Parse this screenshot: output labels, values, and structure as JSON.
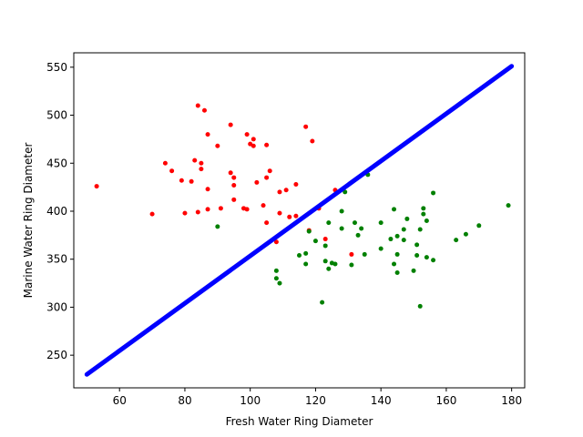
{
  "chart_data": {
    "type": "scatter",
    "title": "",
    "xlabel": "Fresh Water Ring Diameter",
    "ylabel": "Marine Water Ring Diameter",
    "xlim": [
      46,
      184
    ],
    "ylim": [
      216,
      565
    ],
    "xticks": [
      60,
      80,
      100,
      120,
      140,
      160,
      180
    ],
    "yticks": [
      250,
      300,
      350,
      400,
      450,
      500,
      550
    ],
    "grid": false,
    "legend": "none",
    "series": [
      {
        "color": "#ff0000",
        "points": [
          [
            53,
            426
          ],
          [
            70,
            397
          ],
          [
            74,
            450
          ],
          [
            76,
            442
          ],
          [
            79,
            432
          ],
          [
            80,
            398
          ],
          [
            82,
            431
          ],
          [
            83,
            453
          ],
          [
            84,
            510
          ],
          [
            84,
            399
          ],
          [
            85,
            450
          ],
          [
            85,
            444
          ],
          [
            86,
            505
          ],
          [
            87,
            480
          ],
          [
            87,
            423
          ],
          [
            87,
            402
          ],
          [
            90,
            468
          ],
          [
            91,
            403
          ],
          [
            94,
            490
          ],
          [
            94,
            440
          ],
          [
            95,
            435
          ],
          [
            95,
            427
          ],
          [
            95,
            412
          ],
          [
            98,
            403
          ],
          [
            99,
            402
          ],
          [
            99,
            480
          ],
          [
            100,
            470
          ],
          [
            101,
            475
          ],
          [
            101,
            468
          ],
          [
            102,
            430
          ],
          [
            104,
            406
          ],
          [
            105,
            469
          ],
          [
            105,
            435
          ],
          [
            105,
            388
          ],
          [
            106,
            442
          ],
          [
            108,
            368
          ],
          [
            109,
            420
          ],
          [
            109,
            398
          ],
          [
            111,
            422
          ],
          [
            112,
            394
          ],
          [
            114,
            428
          ],
          [
            114,
            395
          ],
          [
            117,
            488
          ],
          [
            118,
            380
          ],
          [
            119,
            473
          ],
          [
            121,
            403
          ],
          [
            123,
            371
          ],
          [
            126,
            422
          ],
          [
            131,
            355
          ]
        ]
      },
      {
        "color": "#008000",
        "points": [
          [
            90,
            384
          ],
          [
            108,
            338
          ],
          [
            108,
            330
          ],
          [
            109,
            325
          ],
          [
            115,
            354
          ],
          [
            117,
            345
          ],
          [
            117,
            356
          ],
          [
            118,
            379
          ],
          [
            120,
            369
          ],
          [
            122,
            305
          ],
          [
            123,
            364
          ],
          [
            123,
            348
          ],
          [
            124,
            388
          ],
          [
            124,
            340
          ],
          [
            125,
            346
          ],
          [
            126,
            345
          ],
          [
            128,
            400
          ],
          [
            128,
            382
          ],
          [
            129,
            420
          ],
          [
            131,
            344
          ],
          [
            132,
            388
          ],
          [
            133,
            375
          ],
          [
            134,
            382
          ],
          [
            135,
            355
          ],
          [
            136,
            438
          ],
          [
            140,
            388
          ],
          [
            140,
            361
          ],
          [
            143,
            371
          ],
          [
            144,
            402
          ],
          [
            144,
            345
          ],
          [
            145,
            336
          ],
          [
            145,
            355
          ],
          [
            145,
            374
          ],
          [
            147,
            370
          ],
          [
            147,
            381
          ],
          [
            148,
            392
          ],
          [
            150,
            338
          ],
          [
            151,
            365
          ],
          [
            151,
            354
          ],
          [
            152,
            301
          ],
          [
            152,
            381
          ],
          [
            153,
            403
          ],
          [
            153,
            397
          ],
          [
            154,
            390
          ],
          [
            154,
            352
          ],
          [
            156,
            419
          ],
          [
            156,
            349
          ],
          [
            163,
            370
          ],
          [
            166,
            376
          ],
          [
            170,
            385
          ],
          [
            179,
            406
          ]
        ]
      }
    ],
    "line": {
      "color": "#0000ff",
      "x": [
        50,
        180
      ],
      "y": [
        230,
        551
      ]
    }
  }
}
